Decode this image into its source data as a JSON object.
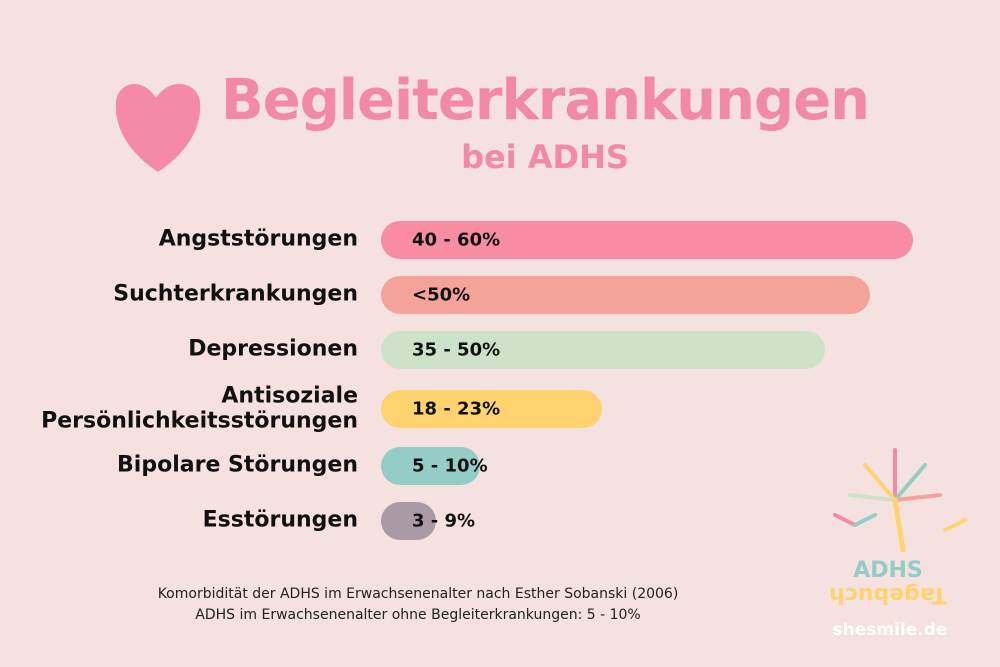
{
  "header": {
    "title": "Begleiterkrankungen",
    "subtitle": "bei ADHS"
  },
  "rows": [
    {
      "label": "Angststörungen",
      "value": "40 - 60%"
    },
    {
      "label": "Suchterkrankungen",
      "value": "<50%"
    },
    {
      "label": "Depressionen",
      "value": "35 - 50%"
    },
    {
      "label": "Antisoziale Persönlichkeitsstörungen",
      "value": "18 - 23%"
    },
    {
      "label": "Bipolare Störungen",
      "value": "5 - 10%"
    },
    {
      "label": "Esstörungen",
      "value": "3 - 9%"
    }
  ],
  "footer": {
    "notes": [
      "Komorbidität der ADHS im Erwachsenenalter nach Esther Sobanski (2006)",
      "ADHS im Erwachsenenalter ohne Begleiterkrankungen: 5 - 10%"
    ]
  },
  "logo": {
    "top": "ADHS",
    "bottom": "Tagebuch",
    "site": "shesmile.de"
  }
}
